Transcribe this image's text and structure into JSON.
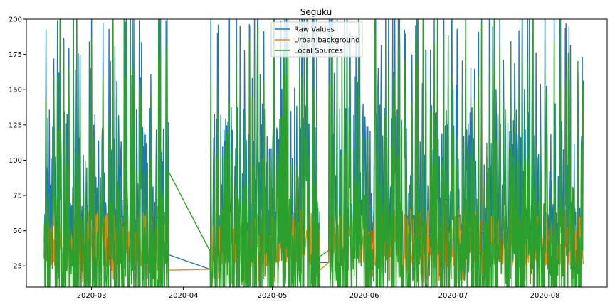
{
  "chart_data": {
    "type": "line",
    "title": "Seguku",
    "xlabel": "",
    "ylabel": "",
    "x_start": "2020-02-14",
    "x_end": "2020-08-14",
    "xlim": [
      "2020-02-08",
      "2020-08-22"
    ],
    "ylim": [
      10,
      200
    ],
    "y_ticks": [
      25,
      50,
      75,
      100,
      125,
      150,
      175,
      200
    ],
    "x_ticks": [
      {
        "date": "2020-03-01",
        "label": "2020-03"
      },
      {
        "date": "2020-04-01",
        "label": "2020-04"
      },
      {
        "date": "2020-05-01",
        "label": "2020-05"
      },
      {
        "date": "2020-06-01",
        "label": "2020-06"
      },
      {
        "date": "2020-07-01",
        "label": "2020-07"
      },
      {
        "date": "2020-08-01",
        "label": "2020-08"
      }
    ],
    "grid": false,
    "legend_position": "top-center",
    "data_gaps": [
      {
        "from": "2020-03-27",
        "to": "2020-04-10"
      },
      {
        "from": "2020-05-17",
        "to": "2020-05-20"
      }
    ],
    "series": [
      {
        "name": "Raw Values",
        "color": "#1f77b4"
      },
      {
        "name": "Urban background",
        "color": "#ff7f0e"
      },
      {
        "name": "Local Sources",
        "color": "#2ca02c"
      }
    ]
  }
}
